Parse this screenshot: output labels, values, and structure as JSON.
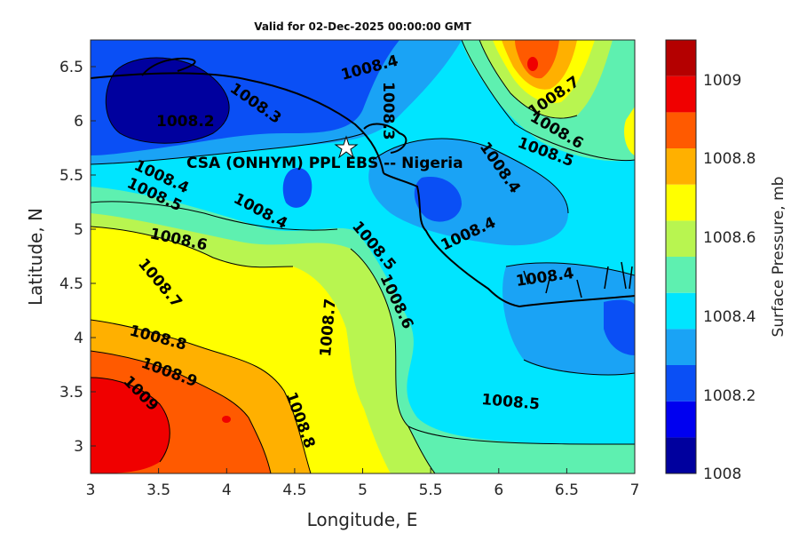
{
  "title": "Valid for 02-Dec-2025 00:00:00 GMT",
  "annotation": "CSA (ONHYM) PPL EBS -- Nigeria",
  "xaxis": {
    "label": "Longitude, E",
    "ticks": [
      "3",
      "3.5",
      "4",
      "4.5",
      "5",
      "5.5",
      "6",
      "6.5",
      "7"
    ]
  },
  "yaxis": {
    "label": "Latitude, N",
    "ticks": [
      "3",
      "3.5",
      "4",
      "4.5",
      "5",
      "5.5",
      "6",
      "6.5"
    ]
  },
  "colorbar": {
    "label": "Surface Pressure, mb",
    "ticks": [
      "1008",
      "1008.2",
      "1008.4",
      "1008.6",
      "1008.8",
      "1009"
    ],
    "colors": [
      "#00009e",
      "#0000f0",
      "#0a4ff5",
      "#1aa3f5",
      "#00e5ff",
      "#5ef0b0",
      "#b8f550",
      "#ffff00",
      "#ffb000",
      "#ff5a00",
      "#f00000",
      "#b40000"
    ]
  },
  "contour_labels": [
    "1008.3",
    "1008.4",
    "1008.2",
    "1008.3",
    "1008.7",
    "1008.6",
    "1008.5",
    "1008.4",
    "1008.4",
    "1008.5",
    "1008.4",
    "1008.6",
    "1008.5",
    "1008.7",
    "1008.8",
    "1008.9",
    "1009",
    "1008.7",
    "1008.6",
    "1008.8",
    "1008.4",
    "1008.4",
    "1008.5"
  ],
  "marker": {
    "name": "star",
    "lon": 4.88,
    "lat": 5.75
  }
}
